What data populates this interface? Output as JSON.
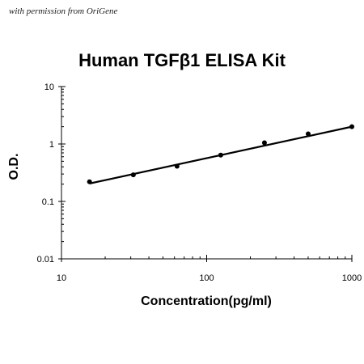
{
  "watermark": "with permission from OriGene",
  "chart_data": {
    "type": "scatter",
    "title": "Human TGFβ1 ELISA Kit",
    "xlabel": "Concentration(pg/ml)",
    "ylabel": "O.D.",
    "x_scale": "log",
    "y_scale": "log",
    "xlim": [
      10,
      1000
    ],
    "ylim": [
      0.01,
      10
    ],
    "x_ticks": [
      "10",
      "100",
      "1000"
    ],
    "y_ticks": [
      "10",
      "1",
      "0.1",
      "0.01"
    ],
    "grid": false,
    "legend": "none",
    "series": [
      {
        "points": [
          {
            "x": 15.6,
            "y": 0.22
          },
          {
            "x": 31.25,
            "y": 0.29
          },
          {
            "x": 62.5,
            "y": 0.41
          },
          {
            "x": 125,
            "y": 0.64
          },
          {
            "x": 250,
            "y": 1.05
          },
          {
            "x": 500,
            "y": 1.5
          },
          {
            "x": 1000,
            "y": 2.0
          }
        ],
        "fit_line": {
          "x": [
            15.6,
            1000
          ],
          "y": [
            0.205,
            2.0
          ]
        },
        "color": "#000000"
      }
    ]
  }
}
